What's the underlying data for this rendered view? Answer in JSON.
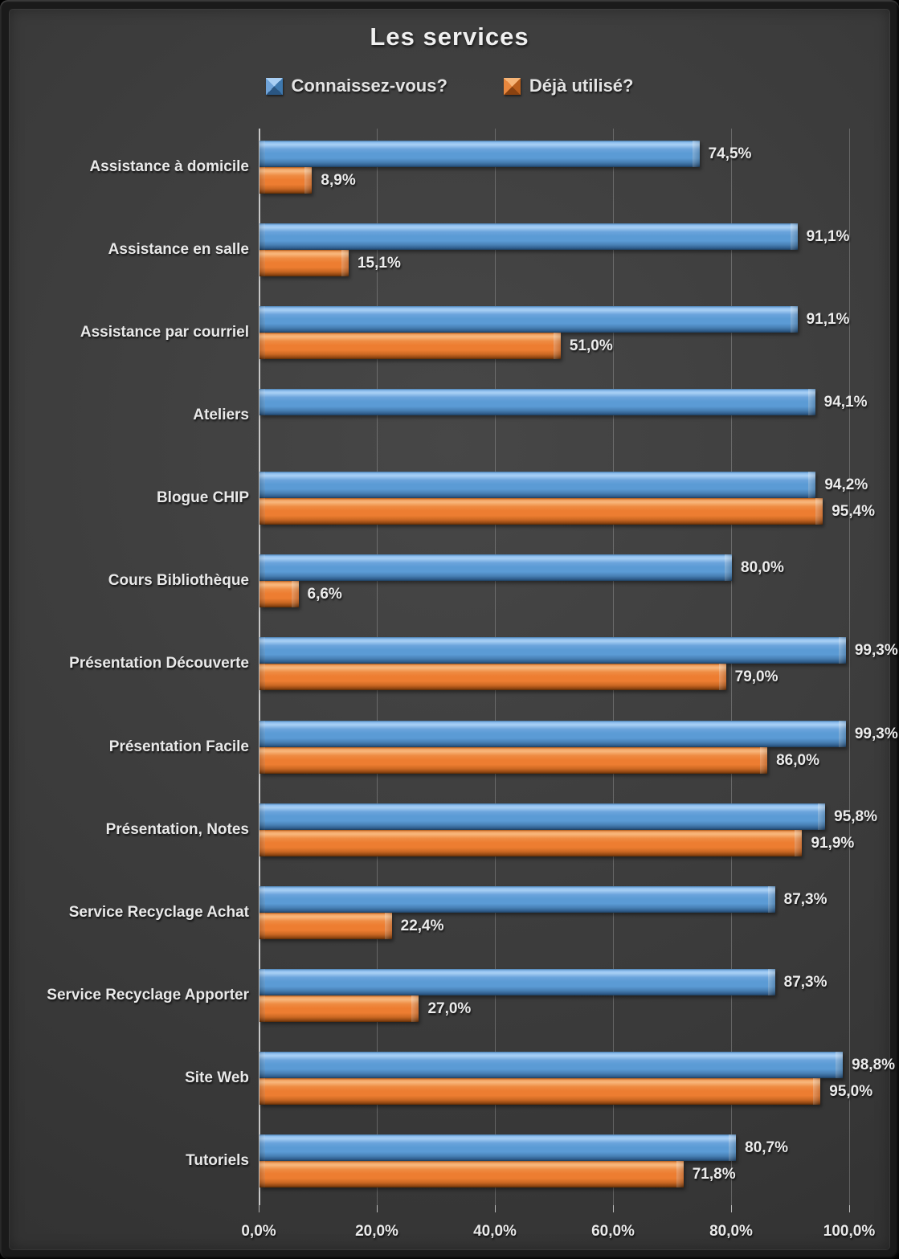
{
  "chart_data": {
    "type": "bar",
    "orientation": "horizontal",
    "title": "Les services",
    "legend_position": "top",
    "grid": true,
    "x_axis": {
      "min": 0,
      "max": 100,
      "tick_values": [
        0,
        20,
        40,
        60,
        80,
        100
      ],
      "tick_labels": [
        "0,0%",
        "20,0%",
        "40,0%",
        "60,0%",
        "80,0%",
        "100,0%"
      ]
    },
    "categories": [
      "Assistance à domicile",
      "Assistance en salle",
      "Assistance par courriel",
      "Ateliers",
      "Blogue CHIP",
      "Cours Bibliothèque",
      "Présentation Découverte",
      "Présentation Facile",
      "Présentation, Notes",
      "Service Recyclage Achat",
      "Service Recyclage Apporter",
      "Site Web",
      "Tutoriels"
    ],
    "series": [
      {
        "name": "Connaissez-vous?",
        "color": "#5B9BD5",
        "values": [
          74.5,
          91.1,
          91.1,
          94.1,
          94.2,
          80.0,
          99.3,
          99.3,
          95.8,
          87.3,
          87.3,
          98.8,
          80.7
        ],
        "labels": [
          "74,5%",
          "91,1%",
          "91,1%",
          "94,1%",
          "94,2%",
          "80,0%",
          "99,3%",
          "99,3%",
          "95,8%",
          "87,3%",
          "87,3%",
          "98,8%",
          "80,7%"
        ]
      },
      {
        "name": "Déjà utilisé?",
        "color": "#ED7D31",
        "values": [
          8.9,
          15.1,
          51.0,
          null,
          95.4,
          6.6,
          79.0,
          86.0,
          91.9,
          22.4,
          27.0,
          95.0,
          71.8
        ],
        "labels": [
          "8,9%",
          "15,1%",
          "51,0%",
          null,
          "95,4%",
          "6,6%",
          "79,0%",
          "86,0%",
          "91,9%",
          "22,4%",
          "27,0%",
          "95,0%",
          "71,8%"
        ]
      }
    ]
  }
}
